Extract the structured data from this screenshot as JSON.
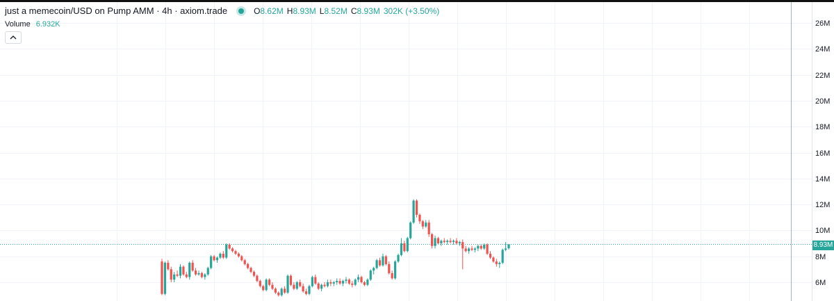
{
  "legend": {
    "title": "just a memecoin/USD on Pump AMM · 4h · axiom.trade",
    "open_label": "O",
    "open": "8.62M",
    "high_label": "H",
    "high": "8.93M",
    "low_label": "L",
    "low": "8.52M",
    "close_label": "C",
    "close": "8.93M",
    "change": "302K (+3.50%)"
  },
  "volume": {
    "label": "Volume",
    "value": "6.932K"
  },
  "collapse_icon": "chevron-up-icon",
  "colors": {
    "up": "#26a69a",
    "down": "#ef5350",
    "grid": "#f0f3fa",
    "price_line": "#26a69a"
  },
  "price_axis": {
    "ticks": [
      "26M",
      "24M",
      "22M",
      "20M",
      "18M",
      "16M",
      "14M",
      "12M",
      "10M",
      "8M",
      "6M"
    ],
    "current_price": "8.93M"
  },
  "chart_data": {
    "type": "candlestick",
    "interval": "4h",
    "ylim_millions": [
      5,
      27
    ],
    "candles_ohlc_millions": [
      [
        7.6,
        7.8,
        5.0,
        5.1
      ],
      [
        5.1,
        7.6,
        5.0,
        7.5
      ],
      [
        7.5,
        7.7,
        6.9,
        7.0
      ],
      [
        7.0,
        7.2,
        6.0,
        6.2
      ],
      [
        6.2,
        6.8,
        6.0,
        6.6
      ],
      [
        6.6,
        6.9,
        6.4,
        6.5
      ],
      [
        6.5,
        7.4,
        6.3,
        7.2
      ],
      [
        7.2,
        7.3,
        6.5,
        6.6
      ],
      [
        6.6,
        6.8,
        6.3,
        6.4
      ],
      [
        6.4,
        7.6,
        6.2,
        7.5
      ],
      [
        7.5,
        7.7,
        6.8,
        6.9
      ],
      [
        6.9,
        7.1,
        6.5,
        6.6
      ],
      [
        6.6,
        6.9,
        6.5,
        6.7
      ],
      [
        6.7,
        6.8,
        6.3,
        6.4
      ],
      [
        6.4,
        6.7,
        6.2,
        6.6
      ],
      [
        6.6,
        7.2,
        6.5,
        7.1
      ],
      [
        7.1,
        8.1,
        7.0,
        8.0
      ],
      [
        8.0,
        8.1,
        7.6,
        7.7
      ],
      [
        7.7,
        8.0,
        7.5,
        7.9
      ],
      [
        7.9,
        8.3,
        7.8,
        8.2
      ],
      [
        8.2,
        8.4,
        7.8,
        7.9
      ],
      [
        7.9,
        9.0,
        7.8,
        8.9
      ],
      [
        8.9,
        9.0,
        8.5,
        8.6
      ],
      [
        8.6,
        8.7,
        8.3,
        8.4
      ],
      [
        8.4,
        8.5,
        8.1,
        8.2
      ],
      [
        8.2,
        8.3,
        7.9,
        8.0
      ],
      [
        8.0,
        8.1,
        7.6,
        7.7
      ],
      [
        7.7,
        7.8,
        7.3,
        7.4
      ],
      [
        7.4,
        7.5,
        7.0,
        7.1
      ],
      [
        7.1,
        7.2,
        6.7,
        6.8
      ],
      [
        6.8,
        6.9,
        6.4,
        6.5
      ],
      [
        6.5,
        6.6,
        6.0,
        6.1
      ],
      [
        6.1,
        6.2,
        5.6,
        5.7
      ],
      [
        5.7,
        5.8,
        5.3,
        5.4
      ],
      [
        5.4,
        6.3,
        5.3,
        6.2
      ],
      [
        6.2,
        6.3,
        5.7,
        5.8
      ],
      [
        5.8,
        6.0,
        5.4,
        5.5
      ],
      [
        5.5,
        5.6,
        5.1,
        5.2
      ],
      [
        5.2,
        5.3,
        4.9,
        5.0
      ],
      [
        5.0,
        5.6,
        4.9,
        5.5
      ],
      [
        5.5,
        5.7,
        5.1,
        5.2
      ],
      [
        5.2,
        6.6,
        5.1,
        6.5
      ],
      [
        6.5,
        6.6,
        5.7,
        5.8
      ],
      [
        5.8,
        6.0,
        5.4,
        5.5
      ],
      [
        5.5,
        6.1,
        5.4,
        6.0
      ],
      [
        6.0,
        6.2,
        5.6,
        5.7
      ],
      [
        5.7,
        5.9,
        5.2,
        5.3
      ],
      [
        5.3,
        5.5,
        5.0,
        5.1
      ],
      [
        5.1,
        5.8,
        5.0,
        5.7
      ],
      [
        5.7,
        6.5,
        5.6,
        6.4
      ],
      [
        6.4,
        6.6,
        5.8,
        5.9
      ],
      [
        5.9,
        6.0,
        5.4,
        5.5
      ],
      [
        5.5,
        5.9,
        5.3,
        5.8
      ],
      [
        5.8,
        6.0,
        5.6,
        5.7
      ],
      [
        5.7,
        6.2,
        5.6,
        6.0
      ],
      [
        6.0,
        6.2,
        5.7,
        5.9
      ],
      [
        5.9,
        6.1,
        5.7,
        6.0
      ],
      [
        6.0,
        6.3,
        5.8,
        6.1
      ],
      [
        6.1,
        6.3,
        5.8,
        5.9
      ],
      [
        5.9,
        6.2,
        5.7,
        6.1
      ],
      [
        6.1,
        6.4,
        5.9,
        6.2
      ],
      [
        6.2,
        6.3,
        5.8,
        5.9
      ],
      [
        5.9,
        6.1,
        5.6,
        5.8
      ],
      [
        5.8,
        6.3,
        5.7,
        6.2
      ],
      [
        6.2,
        6.6,
        6.0,
        6.4
      ],
      [
        6.4,
        6.5,
        5.9,
        6.0
      ],
      [
        6.0,
        6.1,
        5.7,
        5.8
      ],
      [
        5.8,
        6.3,
        5.7,
        6.2
      ],
      [
        6.2,
        7.0,
        6.1,
        6.9
      ],
      [
        6.9,
        7.2,
        6.6,
        7.1
      ],
      [
        7.1,
        7.8,
        7.0,
        7.7
      ],
      [
        7.7,
        7.9,
        7.2,
        7.3
      ],
      [
        7.3,
        8.2,
        7.2,
        8.0
      ],
      [
        8.0,
        8.1,
        7.3,
        7.4
      ],
      [
        7.4,
        7.6,
        6.6,
        6.7
      ],
      [
        6.7,
        6.9,
        6.2,
        6.3
      ],
      [
        6.3,
        7.7,
        6.2,
        7.6
      ],
      [
        7.6,
        8.2,
        7.5,
        8.1
      ],
      [
        8.1,
        9.4,
        8.0,
        9.0
      ],
      [
        9.0,
        9.2,
        8.3,
        8.4
      ],
      [
        8.4,
        9.5,
        8.3,
        9.4
      ],
      [
        9.4,
        10.7,
        9.3,
        10.6
      ],
      [
        10.6,
        12.4,
        10.5,
        12.3
      ],
      [
        12.3,
        12.4,
        11.0,
        11.2
      ],
      [
        11.2,
        11.3,
        10.5,
        10.7
      ],
      [
        10.7,
        10.8,
        10.1,
        10.3
      ],
      [
        10.3,
        10.8,
        10.2,
        10.6
      ],
      [
        10.6,
        10.8,
        9.5,
        9.7
      ],
      [
        9.7,
        9.8,
        8.6,
        8.8
      ],
      [
        8.8,
        9.6,
        8.6,
        9.4
      ],
      [
        9.4,
        9.5,
        8.9,
        9.0
      ],
      [
        9.0,
        9.3,
        8.8,
        9.2
      ],
      [
        9.2,
        9.4,
        9.0,
        9.1
      ],
      [
        9.1,
        9.3,
        8.9,
        9.2
      ],
      [
        9.2,
        9.4,
        9.0,
        9.1
      ],
      [
        9.1,
        9.3,
        8.9,
        9.2
      ],
      [
        9.2,
        9.4,
        8.9,
        9.0
      ],
      [
        9.0,
        9.2,
        8.8,
        9.1
      ],
      [
        9.1,
        9.3,
        7.0,
        8.6
      ],
      [
        8.6,
        8.8,
        8.3,
        8.4
      ],
      [
        8.4,
        8.7,
        8.2,
        8.6
      ],
      [
        8.6,
        8.8,
        8.4,
        8.5
      ],
      [
        8.5,
        8.7,
        8.3,
        8.6
      ],
      [
        8.6,
        8.9,
        8.4,
        8.8
      ],
      [
        8.8,
        8.9,
        8.5,
        8.6
      ],
      [
        8.6,
        9.0,
        8.5,
        8.9
      ],
      [
        8.9,
        9.0,
        8.1,
        8.2
      ],
      [
        8.2,
        8.4,
        7.8,
        7.9
      ],
      [
        7.9,
        8.0,
        7.5,
        7.6
      ],
      [
        7.6,
        7.8,
        7.2,
        7.4
      ],
      [
        7.4,
        7.6,
        7.1,
        7.5
      ],
      [
        7.5,
        8.6,
        7.4,
        8.5
      ],
      [
        8.5,
        9.1,
        8.4,
        8.6
      ],
      [
        8.62,
        8.93,
        8.52,
        8.93
      ]
    ]
  }
}
